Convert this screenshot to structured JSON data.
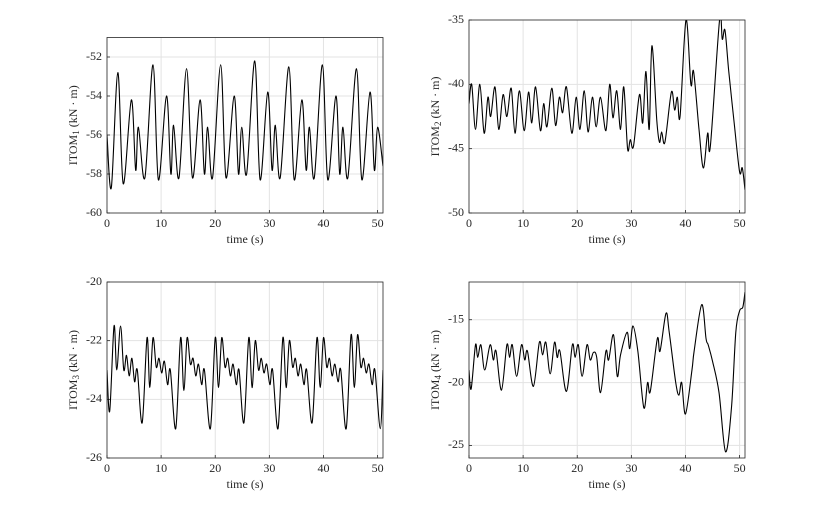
{
  "chart_data": [
    {
      "type": "line",
      "xlabel": "time (s)",
      "ylabel": [
        "ITOM",
        "1",
        "(kN · m)"
      ],
      "xlim": [
        0,
        51
      ],
      "xticks": [
        0,
        10,
        20,
        30,
        40,
        50
      ],
      "ylim": [
        -60,
        -51
      ],
      "yticks": [
        -60,
        -58,
        -56,
        -54,
        -52
      ],
      "grid": true,
      "series": [
        {
          "color": "#000000",
          "x": [
            0,
            0.8,
            2,
            3,
            4.5,
            5.3,
            5.8,
            7,
            8.5,
            9.5,
            11,
            11.8,
            12.3,
            13.3,
            14.7,
            15.8,
            17.2,
            18,
            18.6,
            19.5,
            21,
            22,
            23.5,
            24.3,
            24.9,
            25.8,
            27.3,
            28.3,
            29.7,
            30.5,
            31.1,
            32,
            33.6,
            34.6,
            36,
            36.8,
            37.4,
            38.3,
            39.8,
            40.8,
            42.3,
            43,
            43.6,
            44.5,
            46.1,
            47.1,
            48.6,
            49.4,
            50,
            51
          ],
          "values": [
            -56,
            -58.7,
            -52.8,
            -58.5,
            -54.2,
            -57.8,
            -55.6,
            -58.2,
            -52.4,
            -58.3,
            -54,
            -58,
            -55.5,
            -58.2,
            -52.6,
            -58.2,
            -54.2,
            -58,
            -55.6,
            -58.2,
            -52.4,
            -58.2,
            -54,
            -58,
            -55.6,
            -58,
            -52.2,
            -58.3,
            -53.8,
            -57.8,
            -55.5,
            -58.2,
            -52.5,
            -58.3,
            -54.2,
            -57.8,
            -55.6,
            -58.2,
            -52.4,
            -58.3,
            -54,
            -58,
            -55.6,
            -58.2,
            -52.6,
            -58.3,
            -53.8,
            -57.8,
            -55.6,
            -57.6
          ]
        }
      ]
    },
    {
      "type": "line",
      "xlabel": "time (s)",
      "ylabel": [
        "ITOM",
        "2",
        "(kN · m)"
      ],
      "xlim": [
        0,
        51
      ],
      "xticks": [
        0,
        10,
        20,
        30,
        40,
        50
      ],
      "ylim": [
        -50,
        -35
      ],
      "yticks": [
        -50,
        -45,
        -40,
        -35
      ],
      "grid": true,
      "series": [
        {
          "color": "#000000",
          "x": [
            0,
            0.5,
            1.2,
            2,
            2.8,
            3.5,
            4,
            4.8,
            5.5,
            6.3,
            7,
            7.8,
            8.5,
            9.3,
            10.2,
            11,
            11.6,
            12.3,
            13.2,
            13.8,
            14.4,
            15.3,
            16,
            16.7,
            17.3,
            18,
            19,
            19.8,
            20.5,
            21.3,
            22,
            22.8,
            23.5,
            24.3,
            25.3,
            26,
            26.6,
            27.3,
            28,
            28.6,
            29.3,
            29.8,
            30.4,
            31.5,
            32.1,
            32.7,
            33.3,
            33.8,
            34.7,
            35.2,
            35.6,
            36.2,
            37.4,
            38,
            38.5,
            39,
            40.1,
            41,
            41.5,
            42.5,
            43.3,
            44.1,
            44.6,
            46.3,
            46.8,
            47.3,
            48,
            49,
            50,
            50.5,
            51
          ],
          "values": [
            -41.5,
            -40,
            -43.5,
            -40,
            -43.8,
            -41,
            -42.5,
            -40.2,
            -43.5,
            -40.8,
            -42.5,
            -40.3,
            -43.8,
            -40.5,
            -43.6,
            -40.6,
            -43,
            -40.2,
            -43.6,
            -41.5,
            -43.3,
            -40.3,
            -43.2,
            -41,
            -42.2,
            -40.2,
            -43.8,
            -41,
            -43.5,
            -40.5,
            -43.7,
            -41,
            -43.3,
            -41,
            -43.6,
            -40,
            -42.6,
            -40.5,
            -43.5,
            -40.2,
            -45,
            -44.3,
            -44.8,
            -40.8,
            -43,
            -39,
            -43.5,
            -37,
            -42.8,
            -44.5,
            -43.7,
            -44.5,
            -40.6,
            -42,
            -41,
            -42.5,
            -35,
            -40,
            -39,
            -43.5,
            -46.5,
            -43.8,
            -44.8,
            -35,
            -36.5,
            -35.8,
            -39,
            -43,
            -46.8,
            -46.5,
            -48.2
          ]
        }
      ]
    },
    {
      "type": "line",
      "xlabel": "time (s)",
      "ylabel": [
        "ITOM",
        "3",
        "(kN · m)"
      ],
      "xlim": [
        0,
        51
      ],
      "xticks": [
        0,
        10,
        20,
        30,
        40,
        50
      ],
      "ylim": [
        -26,
        -20
      ],
      "yticks": [
        -26,
        -24,
        -22,
        -20
      ],
      "grid": true,
      "series": [
        {
          "color": "#000000",
          "x": [
            0,
            0.5,
            1.3,
            1.8,
            2.5,
            3.1,
            3.6,
            4.1,
            4.6,
            5.1,
            5.6,
            6.5,
            7.4,
            7.9,
            8.5,
            9.1,
            9.6,
            10.1,
            10.6,
            11.2,
            11.7,
            12.7,
            13.6,
            14.2,
            14.8,
            15.4,
            15.9,
            16.4,
            16.9,
            17.5,
            18,
            19.1,
            20,
            20.6,
            21.2,
            21.8,
            22.3,
            22.8,
            23.3,
            23.9,
            24.4,
            25.3,
            26.2,
            26.8,
            27.4,
            28,
            28.5,
            29,
            29.5,
            30.1,
            30.6,
            31.6,
            32.5,
            33.1,
            33.7,
            34.3,
            34.8,
            35.3,
            35.8,
            36.4,
            36.9,
            37.9,
            38.8,
            39.4,
            40,
            40.6,
            41.1,
            41.6,
            42.1,
            42.7,
            43.2,
            44.2,
            45.1,
            45.7,
            46.3,
            46.9,
            47.4,
            47.9,
            48.4,
            49,
            49.5,
            50.5,
            51
          ],
          "values": [
            -23,
            -24.4,
            -21.5,
            -23,
            -21.5,
            -23,
            -22.5,
            -23.2,
            -22.6,
            -23.4,
            -23,
            -24.8,
            -21.9,
            -23.6,
            -21.9,
            -22.9,
            -22.6,
            -23.1,
            -22.7,
            -23.5,
            -23,
            -25,
            -21.9,
            -23.7,
            -21.9,
            -22.8,
            -22.6,
            -23.2,
            -22.8,
            -23.5,
            -23,
            -25,
            -21.9,
            -23.6,
            -21.9,
            -22.9,
            -22.6,
            -23.2,
            -22.8,
            -23.5,
            -23,
            -24.8,
            -21.9,
            -23.6,
            -22,
            -23,
            -22.6,
            -23.1,
            -22.8,
            -23.5,
            -23,
            -25,
            -21.9,
            -23.6,
            -22,
            -22.9,
            -22.6,
            -23.2,
            -22.8,
            -23.5,
            -23,
            -24.8,
            -21.9,
            -23.6,
            -21.9,
            -22.9,
            -22.6,
            -23.2,
            -22.8,
            -23.4,
            -23,
            -25,
            -21.8,
            -23.6,
            -21.8,
            -22.9,
            -22.6,
            -23.1,
            -22.8,
            -23.5,
            -23,
            -25,
            -23
          ]
        }
      ]
    },
    {
      "type": "line",
      "xlabel": "time (s)",
      "ylabel": [
        "ITOM",
        "4",
        "(kN · m)"
      ],
      "xlim": [
        0,
        51
      ],
      "xticks": [
        0,
        10,
        20,
        30,
        40,
        50
      ],
      "ylim": [
        -26,
        -12
      ],
      "yticks": [
        -25,
        -20,
        -15
      ],
      "grid": true,
      "series": [
        {
          "color": "#000000",
          "x": [
            0,
            0.4,
            1.2,
            1.6,
            2.2,
            2.9,
            3.9,
            4.5,
            5,
            6,
            7,
            7.5,
            8,
            8.8,
            9.7,
            10.3,
            10.8,
            11.9,
            13,
            13.6,
            14.2,
            15,
            15.8,
            16.3,
            16.8,
            18,
            19.1,
            19.6,
            20.2,
            20.9,
            21.8,
            22.4,
            23,
            23.6,
            24.3,
            25.3,
            25.8,
            26.7,
            27.4,
            28,
            29.2,
            29.7,
            30.3,
            31.2,
            32.3,
            33,
            33.5,
            34.8,
            35.3,
            36.4,
            37,
            38.2,
            38.8,
            39.3,
            40,
            41.2,
            41.6,
            43,
            43.8,
            44.2,
            45,
            46.2,
            47.4,
            48.5,
            49.3,
            50,
            50.6,
            51
          ],
          "values": [
            -19,
            -20.5,
            -17,
            -18,
            -17,
            -19,
            -17,
            -18.2,
            -17.5,
            -20.6,
            -17,
            -18,
            -17,
            -19.5,
            -17,
            -18.2,
            -17.5,
            -20.3,
            -16.8,
            -17.8,
            -16.8,
            -19.3,
            -16.8,
            -18,
            -17.5,
            -20.7,
            -17,
            -18,
            -17,
            -19.5,
            -17,
            -18.2,
            -17.6,
            -18,
            -20.8,
            -17.5,
            -18.2,
            -16.2,
            -19.5,
            -17.8,
            -16,
            -17.3,
            -15.5,
            -17.5,
            -22,
            -20,
            -20.7,
            -16.5,
            -17.5,
            -14.5,
            -16,
            -20,
            -21,
            -20,
            -22.5,
            -19,
            -17.5,
            -13.8,
            -16.5,
            -17,
            -18.3,
            -20.8,
            -25.5,
            -22,
            -16,
            -14.3,
            -14,
            -12.8
          ]
        }
      ]
    }
  ]
}
